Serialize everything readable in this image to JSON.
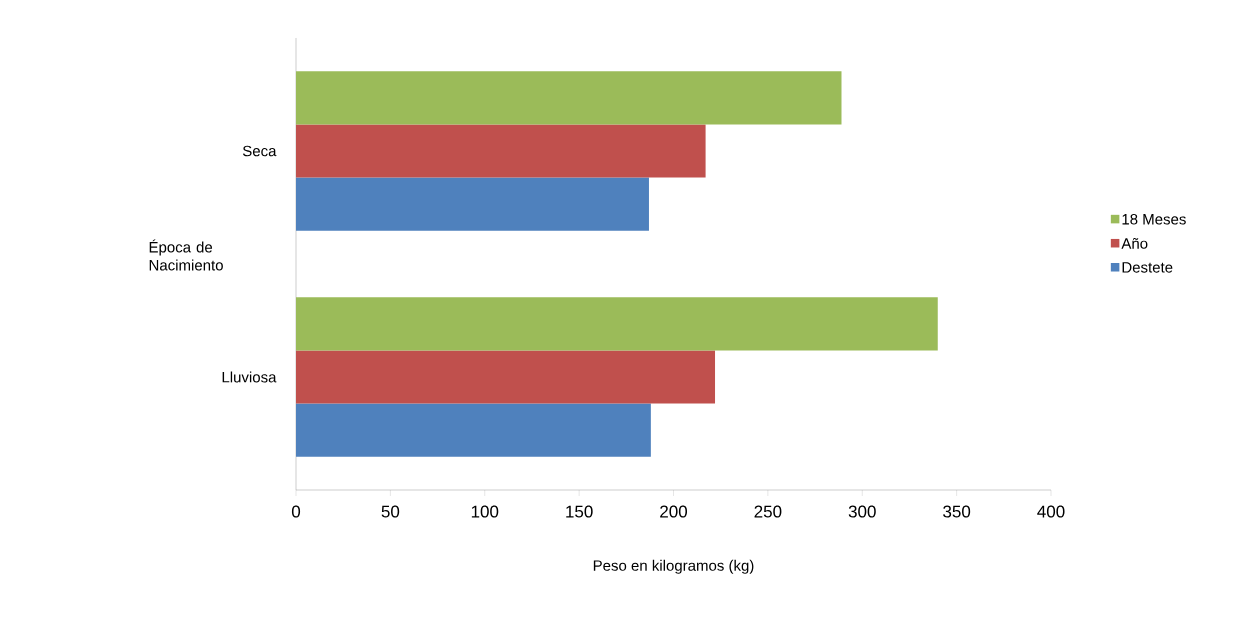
{
  "chart_data": {
    "type": "bar",
    "orientation": "horizontal",
    "xlabel": "Peso en kilogramos (kg)",
    "ylabel": "Época de Nacimiento",
    "categories": [
      "Seca",
      "Lluviosa"
    ],
    "series": [
      {
        "name": "Destete",
        "color": "#4f81bd",
        "values": [
          187,
          188
        ]
      },
      {
        "name": "Año",
        "color": "#c0504d",
        "values": [
          217,
          222
        ]
      },
      {
        "name": "18 Meses",
        "color": "#9bbb59",
        "values": [
          289,
          340
        ]
      }
    ],
    "xlim": [
      0,
      400
    ],
    "xticks": [
      0,
      50,
      100,
      150,
      200,
      250,
      300,
      350,
      400
    ],
    "legend": "right"
  }
}
